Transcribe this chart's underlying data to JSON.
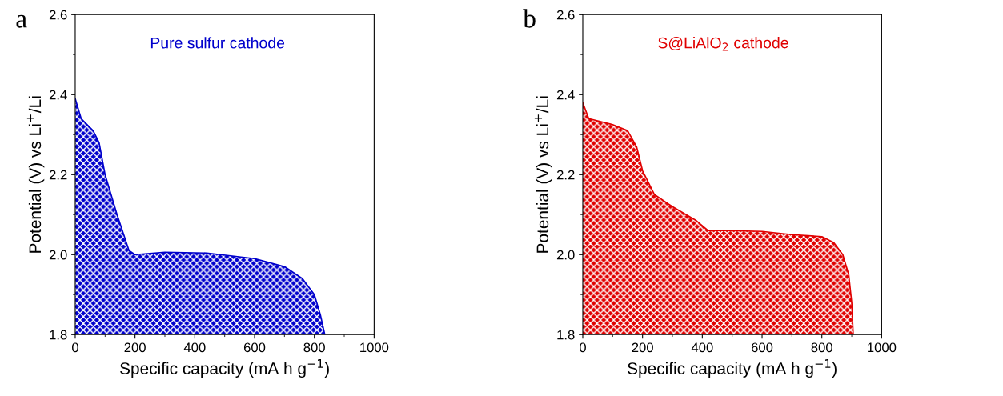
{
  "chart_data": [
    {
      "type": "area",
      "annotations": [
        "a"
      ],
      "xlabel": "Specific capacity (mA h g$^{−1}$)",
      "ylabel": "Potential (V) vs Li$^{+}$/Li",
      "xlim": [
        0,
        1000
      ],
      "ylim": [
        1.8,
        2.6
      ],
      "xticks": [
        0,
        200,
        400,
        600,
        800,
        1000
      ],
      "yticks": [
        1.8,
        {
          "value": 2,
          "label": "2.0"
        },
        2.2,
        2.4,
        2.6
      ],
      "series": [
        {
          "name": "Pure sulfur cathode",
          "color": "#0000cc",
          "x": [
            0,
            20,
            60,
            80,
            100,
            140,
            180,
            200,
            300,
            440,
            600,
            700,
            760,
            800,
            820,
            835
          ],
          "values": [
            2.39,
            2.34,
            2.31,
            2.28,
            2.2,
            2.1,
            2.01,
            2.0,
            2.006,
            2.004,
            1.99,
            1.97,
            1.94,
            1.9,
            1.85,
            1.8
          ]
        }
      ]
    },
    {
      "type": "area",
      "annotations": [
        "b"
      ],
      "xlabel": "Specific capacity (mA h g$^{−1}$)",
      "ylabel": "Potential (V) vs Li$^{+}$/Li",
      "xlim": [
        0,
        1000
      ],
      "ylim": [
        1.8,
        2.6
      ],
      "xticks": [
        0,
        200,
        400,
        600,
        800,
        1000
      ],
      "yticks": [
        1.8,
        {
          "value": 2,
          "label": "2.0"
        },
        2.2,
        2.4,
        2.6
      ],
      "series": [
        {
          "name": "S@LiAlO$_{2}$ cathode",
          "color": "#e00000",
          "x": [
            0,
            20,
            100,
            150,
            180,
            200,
            240,
            300,
            380,
            420,
            500,
            600,
            700,
            800,
            840,
            870,
            890,
            900,
            905
          ],
          "values": [
            2.38,
            2.34,
            2.325,
            2.31,
            2.27,
            2.21,
            2.15,
            2.12,
            2.085,
            2.06,
            2.06,
            2.058,
            2.05,
            2.045,
            2.03,
            2.0,
            1.95,
            1.88,
            1.8
          ]
        }
      ]
    }
  ]
}
